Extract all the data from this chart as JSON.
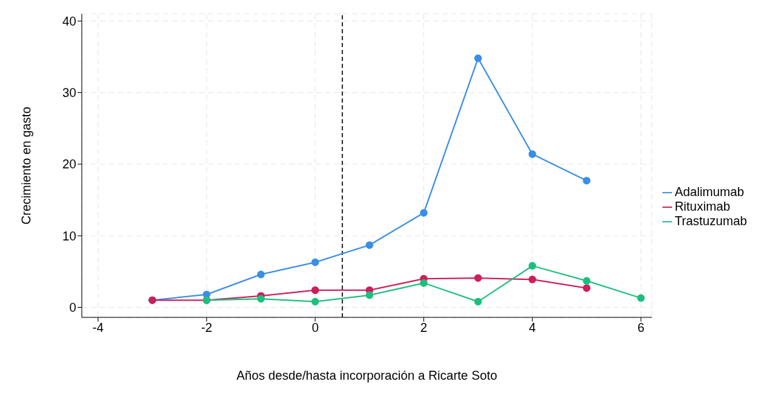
{
  "chart_data": {
    "type": "line",
    "xlabel": "Años desde/hasta incorporación a Ricarte Soto",
    "ylabel": "Crecimiento en gasto",
    "xlim": [
      -4.3,
      6.2
    ],
    "xticks": [
      -4,
      -2,
      0,
      2,
      4,
      6
    ],
    "ylim": [
      -1.4,
      41
    ],
    "yticks": [
      0,
      10,
      20,
      30,
      40
    ],
    "grid": true,
    "legend": "right",
    "marker": "circle",
    "line_style": "solid",
    "ref_lines": [
      {
        "axis": "x",
        "value": 0.5,
        "color": "#000000",
        "line_style": "dashed"
      }
    ],
    "series": [
      {
        "name": "Adalimumab",
        "color": "#3a8ee6",
        "x": [
          -3,
          -2,
          -1,
          0,
          1,
          2,
          3,
          4,
          5
        ],
        "values": [
          1.0,
          1.8,
          4.6,
          6.3,
          8.7,
          13.2,
          34.8,
          21.4,
          17.7
        ]
      },
      {
        "name": "Rituximab",
        "color": "#cc1f5b",
        "x": [
          -3,
          -2,
          -1,
          0,
          1,
          2,
          3,
          4,
          5
        ],
        "values": [
          1.0,
          1.0,
          1.6,
          2.4,
          2.4,
          4.0,
          4.1,
          3.9,
          2.7
        ]
      },
      {
        "name": "Trastuzumab",
        "color": "#1dbf7e",
        "x": [
          -2,
          -1,
          0,
          1,
          2,
          3,
          4,
          5,
          6
        ],
        "values": [
          1.0,
          1.2,
          0.8,
          1.7,
          3.4,
          0.8,
          5.8,
          3.7,
          1.3
        ]
      }
    ]
  }
}
